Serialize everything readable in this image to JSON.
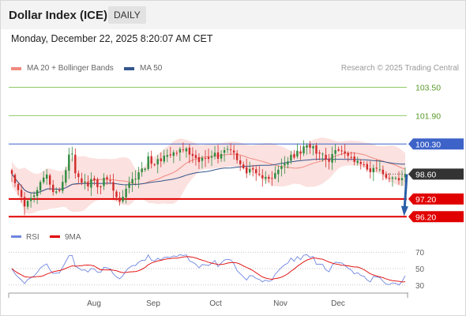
{
  "header": {
    "title": "Dollar Index (ICE)",
    "period": "DAILY"
  },
  "timestamp": "Monday, December 22, 2025 8:20:07 AM CET",
  "legend": [
    {
      "label": "MA 20 + Bollinger Bands",
      "color": "#f08a80"
    },
    {
      "label": "MA 50",
      "color": "#33568c"
    }
  ],
  "credit": "Research © 2025 Trading Central",
  "colors": {
    "up": "#2e8b3e",
    "down": "#d22a2a",
    "resistance": "#8fca68",
    "pivot": "#3d63c9",
    "support": "#e10000",
    "rsi": "#6f86e0",
    "rsi_ma": "#e10000",
    "arrow": "#2b5fa8"
  },
  "chart_data": [
    {
      "type": "candlestick",
      "x_labels": [
        "Aug",
        "Sep",
        "Oct",
        "Nov",
        "Dec"
      ],
      "ylim": [
        95.9,
        104.1
      ],
      "levels": [
        {
          "value": 103.5,
          "label": "103.50",
          "kind": "resistance"
        },
        {
          "value": 101.9,
          "label": "101.90",
          "kind": "resistance"
        },
        {
          "value": 100.3,
          "label": "100.30",
          "kind": "pivot"
        },
        {
          "value": 98.6,
          "label": "98.60",
          "kind": "last"
        },
        {
          "value": 97.2,
          "label": "97.20",
          "kind": "support"
        },
        {
          "value": 96.2,
          "label": "96.20",
          "kind": "support"
        }
      ],
      "forecast_arrow": {
        "from": 98.6,
        "to": 96.5
      }
    },
    {
      "type": "line",
      "legend": [
        "RSI",
        "9MA"
      ],
      "yticks": [
        70,
        50,
        30
      ],
      "ylim": [
        24,
        76
      ]
    }
  ]
}
